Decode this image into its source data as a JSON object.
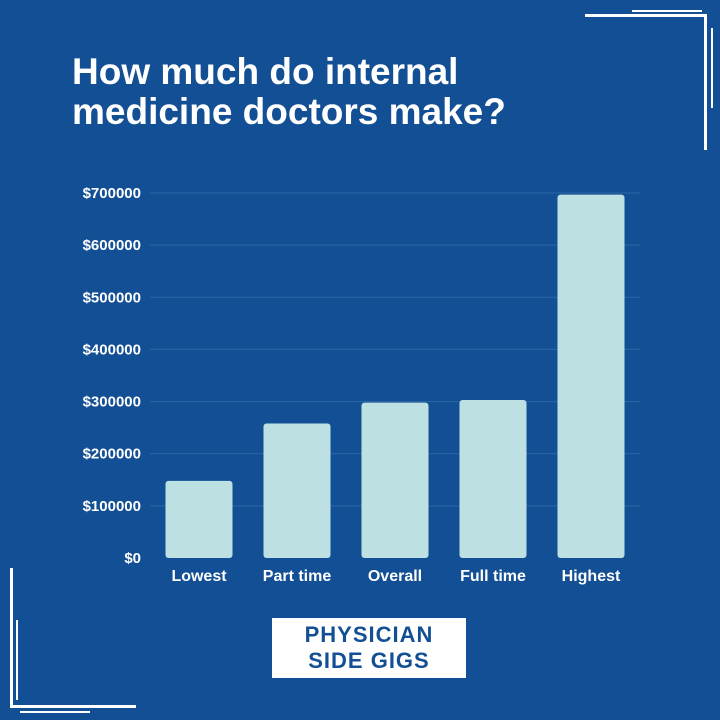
{
  "title_lines": [
    "How much do internal",
    "medicine doctors make?"
  ],
  "logo_lines": [
    "PHYSICIAN",
    "SIDE GIGS"
  ],
  "colors": {
    "background": "#124f94",
    "bar": "#bde0e3",
    "text": "#ffffff",
    "grid": "#2c66a6",
    "frame": "#ffffff"
  },
  "chart_data": {
    "type": "bar",
    "categories": [
      "Lowest",
      "Part time",
      "Overall",
      "Full time",
      "Highest"
    ],
    "values": [
      148000,
      258000,
      298000,
      303000,
      697000
    ],
    "ylim": [
      0,
      700000
    ],
    "yticks": [
      0,
      100000,
      200000,
      300000,
      400000,
      500000,
      600000,
      700000
    ],
    "ytick_labels": [
      "$0",
      "$100000",
      "$200000",
      "$300000",
      "$400000",
      "$500000",
      "$600000",
      "$700000"
    ],
    "grid": true,
    "legend": "none"
  }
}
